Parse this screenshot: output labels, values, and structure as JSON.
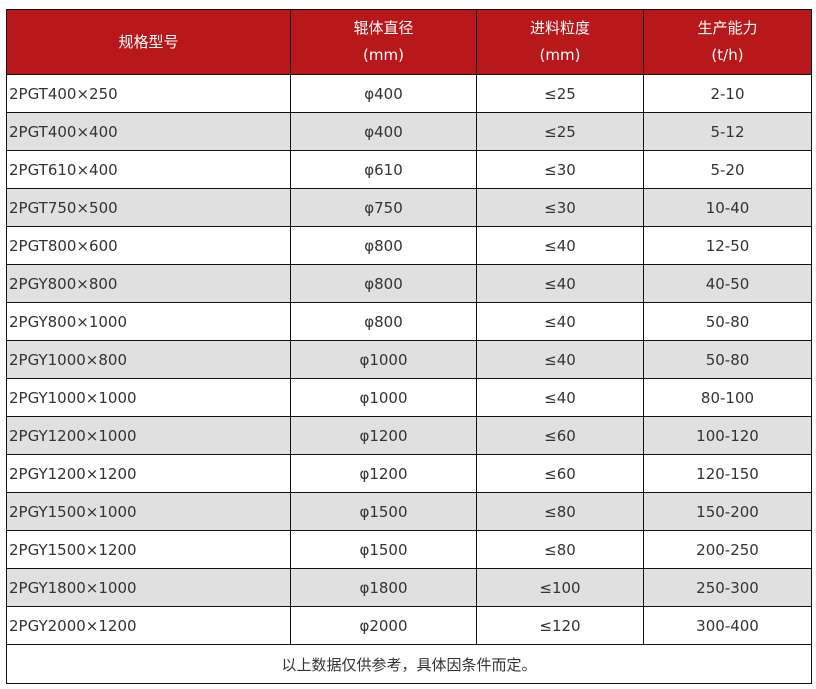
{
  "colors": {
    "header_bg": "#b8181a",
    "stripe_bg": "#e0e0e0"
  },
  "headers": [
    {
      "line1": "规格型号",
      "line2": ""
    },
    {
      "line1": "辊体直径",
      "line2": "(mm)"
    },
    {
      "line1": "进料粒度",
      "line2": "(mm)"
    },
    {
      "line1": "生产能力",
      "line2": "(t/h)"
    }
  ],
  "rows": [
    [
      "2PGT400×250",
      "φ400",
      "≤25",
      "2-10"
    ],
    [
      "2PGT400×400",
      "φ400",
      "≤25",
      "5-12"
    ],
    [
      "2PGT610×400",
      "φ610",
      "≤30",
      "5-20"
    ],
    [
      "2PGT750×500",
      "φ750",
      "≤30",
      "10-40"
    ],
    [
      "2PGT800×600",
      "φ800",
      "≤40",
      "12-50"
    ],
    [
      "2PGY800×800",
      "φ800",
      "≤40",
      "40-50"
    ],
    [
      "2PGY800×1000",
      "φ800",
      "≤40",
      "50-80"
    ],
    [
      "2PGY1000×800",
      "φ1000",
      "≤40",
      "50-80"
    ],
    [
      "2PGY1000×1000",
      "φ1000",
      "≤40",
      "80-100"
    ],
    [
      "2PGY1200×1000",
      "φ1200",
      "≤60",
      "100-120"
    ],
    [
      "2PGY1200×1200",
      "φ1200",
      "≤60",
      "120-150"
    ],
    [
      "2PGY1500×1000",
      "φ1500",
      "≤80",
      "150-200"
    ],
    [
      "2PGY1500×1200",
      "φ1500",
      "≤80",
      "200-250"
    ],
    [
      "2PGY1800×1000",
      "φ1800",
      "≤100",
      "250-300"
    ],
    [
      "2PGY2000×1200",
      "φ2000",
      "≤120",
      "300-400"
    ]
  ],
  "note": "以上数据仅供参考，具体因条件而定。"
}
